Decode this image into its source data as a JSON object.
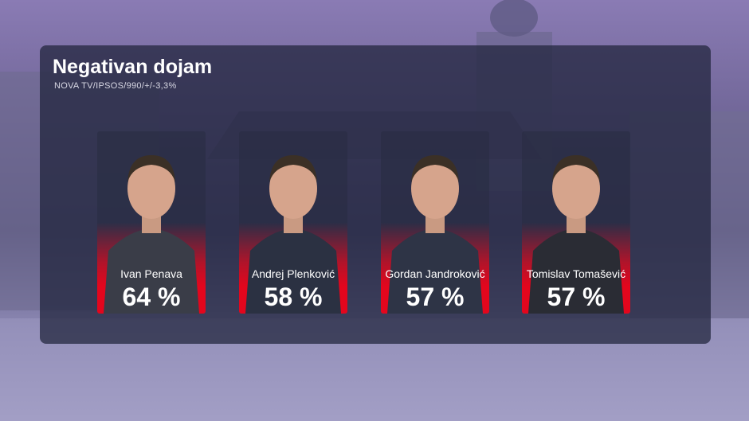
{
  "header": {
    "title": "Negativan dojam",
    "subtitle": "NOVA TV/IPSOS/990/+/-3,3%"
  },
  "cards": [
    {
      "name": "Ivan Penava",
      "value": "64 %"
    },
    {
      "name": "Andrej Plenković",
      "value": "58 %"
    },
    {
      "name": "Gordan Jandroković",
      "value": "57 %"
    },
    {
      "name": "Tomislav Tomašević",
      "value": "57 %"
    }
  ]
}
